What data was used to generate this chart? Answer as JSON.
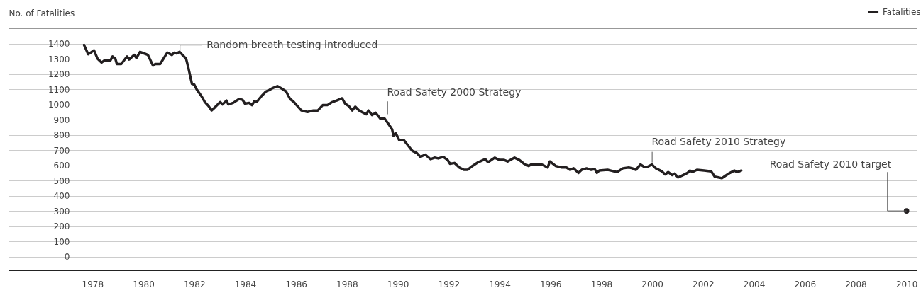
{
  "chart_data": {
    "type": "line",
    "ylabel": "No. of Fatalities",
    "legend": "top right",
    "grid": "y",
    "xlim": [
      1974.7,
      2010.4
    ],
    "ylim": [
      -90,
      1500
    ],
    "xticks": [
      1978,
      1980,
      1982,
      1984,
      1986,
      1988,
      1990,
      1992,
      1994,
      1996,
      1998,
      2000,
      2002,
      2004,
      2006,
      2008,
      2010
    ],
    "yticks": [
      0,
      100,
      200,
      300,
      400,
      500,
      600,
      700,
      800,
      900,
      1000,
      1100,
      1200,
      1300,
      1400
    ],
    "series": [
      {
        "name": "Fatalities",
        "type": "line",
        "color": "#231f20",
        "x": [
          1977.67,
          1977.83,
          1977.93,
          1978.06,
          1978.2,
          1978.36,
          1978.48,
          1978.71,
          1978.79,
          1978.9,
          1978.96,
          1979.13,
          1979.36,
          1979.44,
          1979.64,
          1979.73,
          1979.87,
          1980.03,
          1980.18,
          1980.38,
          1980.47,
          1980.66,
          1980.94,
          1981.12,
          1981.21,
          1981.31,
          1981.42,
          1981.54,
          1981.68,
          1981.77,
          1981.91,
          1982.0,
          1982.09,
          1982.28,
          1982.42,
          1982.56,
          1982.68,
          1982.81,
          1983.02,
          1983.11,
          1983.27,
          1983.34,
          1983.53,
          1983.76,
          1983.9,
          1983.99,
          1984.16,
          1984.27,
          1984.36,
          1984.45,
          1984.62,
          1984.82,
          1984.96,
          1985.06,
          1985.27,
          1985.43,
          1985.61,
          1985.77,
          1985.89,
          1986.05,
          1986.21,
          1986.45,
          1986.68,
          1986.86,
          1987.05,
          1987.23,
          1987.42,
          1987.6,
          1987.81,
          1987.93,
          1988.07,
          1988.21,
          1988.33,
          1988.48,
          1988.76,
          1988.85,
          1988.99,
          1989.13,
          1989.32,
          1989.47,
          1989.62,
          1989.78,
          1989.83,
          1989.92,
          1990.06,
          1990.24,
          1990.38,
          1990.57,
          1990.75,
          1990.89,
          1991.08,
          1991.29,
          1991.45,
          1991.59,
          1991.79,
          1991.96,
          1992.05,
          1992.23,
          1992.42,
          1992.6,
          1992.74,
          1992.93,
          1993.16,
          1993.44,
          1993.55,
          1993.81,
          1993.99,
          1994.18,
          1994.32,
          1994.59,
          1994.78,
          1994.96,
          1995.15,
          1995.24,
          1995.66,
          1995.89,
          1995.98,
          1996.21,
          1996.45,
          1996.63,
          1996.77,
          1996.91,
          1997.1,
          1997.23,
          1997.42,
          1997.6,
          1997.74,
          1997.83,
          1997.92,
          1998.25,
          1998.38,
          1998.62,
          1998.85,
          1999.08,
          1999.22,
          1999.36,
          1999.54,
          1999.68,
          1999.82,
          1999.99,
          2000.14,
          2000.38,
          2000.51,
          2000.63,
          2000.79,
          2000.88,
          2001.02,
          2001.21,
          2001.39,
          2001.49,
          2001.58,
          2001.76,
          2002.04,
          2002.32,
          2002.46,
          2002.6,
          2002.74,
          2002.92,
          2003.06,
          2003.23,
          2003.34,
          2003.5
        ],
        "values": [
          1390,
          1330,
          1340,
          1355,
          1300,
          1275,
          1290,
          1290,
          1315,
          1300,
          1265,
          1265,
          1315,
          1295,
          1325,
          1305,
          1345,
          1335,
          1325,
          1255,
          1265,
          1265,
          1340,
          1325,
          1340,
          1335,
          1345,
          1325,
          1300,
          1240,
          1135,
          1130,
          1100,
          1055,
          1015,
          990,
          960,
          980,
          1015,
          1000,
          1025,
          1000,
          1010,
          1035,
          1030,
          1005,
          1010,
          995,
          1020,
          1015,
          1050,
          1085,
          1095,
          1105,
          1120,
          1105,
          1085,
          1035,
          1020,
          990,
          960,
          950,
          960,
          960,
          995,
          995,
          1015,
          1025,
          1040,
          1005,
          990,
          960,
          985,
          960,
          935,
          960,
          930,
          945,
          905,
          910,
          875,
          835,
          795,
          810,
          765,
          765,
          735,
          695,
          680,
          655,
          670,
          640,
          650,
          645,
          655,
          635,
          610,
          615,
          585,
          570,
          570,
          595,
          620,
          640,
          620,
          650,
          635,
          635,
          625,
          650,
          635,
          610,
          595,
          605,
          605,
          585,
          625,
          595,
          585,
          585,
          570,
          580,
          550,
          570,
          580,
          570,
          575,
          550,
          565,
          570,
          565,
          555,
          580,
          585,
          580,
          570,
          605,
          590,
          590,
          605,
          580,
          560,
          540,
          555,
          535,
          545,
          520,
          535,
          550,
          565,
          555,
          570,
          565,
          560,
          525,
          520,
          515,
          535,
          550,
          565,
          555,
          565
        ]
      },
      {
        "type": "scatter",
        "color": "#231f20",
        "marker": "circle",
        "x": [
          2010
        ],
        "values": [
          300
        ]
      }
    ],
    "annotations": [
      {
        "text": "Random breath testing introduced",
        "x": 1981.44,
        "y": 1340
      },
      {
        "text": "Road Safety 2000 Strategy",
        "x": 1989.6,
        "y": 880
      },
      {
        "text": "Road Safety 2010 Strategy",
        "x": 2000,
        "y": 600
      },
      "Road Safety 2010 target"
    ]
  }
}
